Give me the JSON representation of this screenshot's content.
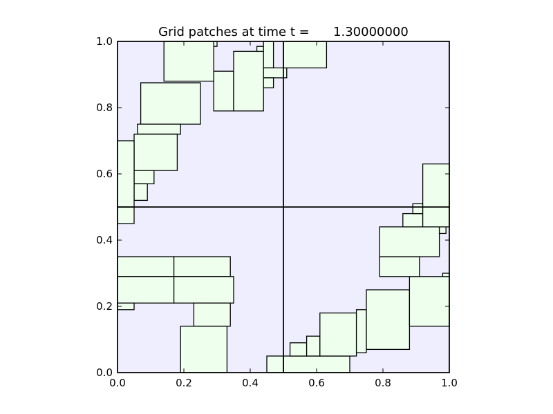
{
  "chart_data": {
    "type": "grid-patches",
    "title": "Grid patches at time t =      1.30000000",
    "xlim": [
      0.0,
      1.0
    ],
    "ylim": [
      0.0,
      1.0
    ],
    "xticks": [
      "0.0",
      "0.2",
      "0.4",
      "0.6",
      "0.8",
      "1.0"
    ],
    "yticks": [
      "0.0",
      "0.2",
      "0.4",
      "0.6",
      "0.8",
      "1.0"
    ],
    "background_color": "#eeeeff",
    "patch_fill": "#eeffee",
    "patch_edge": "#000000",
    "level1_patches": [
      {
        "x0": 0.0,
        "x1": 0.5,
        "y0": 0.0,
        "y1": 0.5
      },
      {
        "x0": 0.5,
        "x1": 1.0,
        "y0": 0.0,
        "y1": 0.5
      },
      {
        "x0": 0.0,
        "x1": 0.5,
        "y0": 0.5,
        "y1": 1.0
      },
      {
        "x0": 0.5,
        "x1": 1.0,
        "y0": 0.5,
        "y1": 1.0
      }
    ],
    "level2_patches": [
      {
        "x0": 0.14,
        "x1": 0.29,
        "y0": 0.88,
        "y1": 1.0
      },
      {
        "x0": 0.29,
        "x1": 0.3,
        "y0": 0.985,
        "y1": 1.0
      },
      {
        "x0": 0.07,
        "x1": 0.25,
        "y0": 0.75,
        "y1": 0.875
      },
      {
        "x0": 0.06,
        "x1": 0.19,
        "y0": 0.72,
        "y1": 0.75
      },
      {
        "x0": 0.05,
        "x1": 0.18,
        "y0": 0.61,
        "y1": 0.72
      },
      {
        "x0": 0.05,
        "x1": 0.11,
        "y0": 0.57,
        "y1": 0.61
      },
      {
        "x0": 0.05,
        "x1": 0.09,
        "y0": 0.52,
        "y1": 0.57
      },
      {
        "x0": 0.0,
        "x1": 0.05,
        "y0": 0.5,
        "y1": 0.7
      },
      {
        "x0": 0.0,
        "x1": 0.05,
        "y0": 0.45,
        "y1": 0.5
      },
      {
        "x0": 0.29,
        "x1": 0.35,
        "y0": 0.79,
        "y1": 0.91
      },
      {
        "x0": 0.35,
        "x1": 0.44,
        "y0": 0.79,
        "y1": 0.97
      },
      {
        "x0": 0.42,
        "x1": 0.44,
        "y0": 0.97,
        "y1": 0.985
      },
      {
        "x0": 0.44,
        "x1": 0.47,
        "y0": 0.92,
        "y1": 1.0
      },
      {
        "x0": 0.44,
        "x1": 0.51,
        "y0": 0.89,
        "y1": 0.92
      },
      {
        "x0": 0.44,
        "x1": 0.47,
        "y0": 0.86,
        "y1": 0.89
      },
      {
        "x0": 0.5,
        "x1": 0.63,
        "y0": 0.92,
        "y1": 1.0
      },
      {
        "x0": 0.0,
        "x1": 0.17,
        "y0": 0.29,
        "y1": 0.35
      },
      {
        "x0": 0.17,
        "x1": 0.34,
        "y0": 0.29,
        "y1": 0.35
      },
      {
        "x0": 0.0,
        "x1": 0.17,
        "y0": 0.21,
        "y1": 0.29
      },
      {
        "x0": 0.17,
        "x1": 0.35,
        "y0": 0.21,
        "y1": 0.29
      },
      {
        "x0": 0.0,
        "x1": 0.05,
        "y0": 0.19,
        "y1": 0.21
      },
      {
        "x0": 0.23,
        "x1": 0.34,
        "y0": 0.14,
        "y1": 0.21
      },
      {
        "x0": 0.19,
        "x1": 0.33,
        "y0": 0.0,
        "y1": 0.14
      },
      {
        "x0": 0.45,
        "x1": 0.5,
        "y0": 0.0,
        "y1": 0.05
      },
      {
        "x0": 0.5,
        "x1": 0.7,
        "y0": 0.0,
        "y1": 0.05
      },
      {
        "x0": 0.52,
        "x1": 0.57,
        "y0": 0.05,
        "y1": 0.09
      },
      {
        "x0": 0.57,
        "x1": 0.61,
        "y0": 0.05,
        "y1": 0.11
      },
      {
        "x0": 0.61,
        "x1": 0.72,
        "y0": 0.05,
        "y1": 0.18
      },
      {
        "x0": 0.72,
        "x1": 0.75,
        "y0": 0.06,
        "y1": 0.19
      },
      {
        "x0": 0.75,
        "x1": 0.88,
        "y0": 0.07,
        "y1": 0.25
      },
      {
        "x0": 0.88,
        "x1": 1.0,
        "y0": 0.14,
        "y1": 0.29
      },
      {
        "x0": 0.98,
        "x1": 1.0,
        "y0": 0.29,
        "y1": 0.3
      },
      {
        "x0": 0.79,
        "x1": 0.91,
        "y0": 0.29,
        "y1": 0.35
      },
      {
        "x0": 0.79,
        "x1": 0.97,
        "y0": 0.35,
        "y1": 0.44
      },
      {
        "x0": 0.97,
        "x1": 0.99,
        "y0": 0.42,
        "y1": 0.44
      },
      {
        "x0": 0.86,
        "x1": 0.92,
        "y0": 0.44,
        "y1": 0.48
      },
      {
        "x0": 0.89,
        "x1": 0.92,
        "y0": 0.48,
        "y1": 0.51
      },
      {
        "x0": 0.92,
        "x1": 1.0,
        "y0": 0.44,
        "y1": 0.63
      }
    ]
  }
}
